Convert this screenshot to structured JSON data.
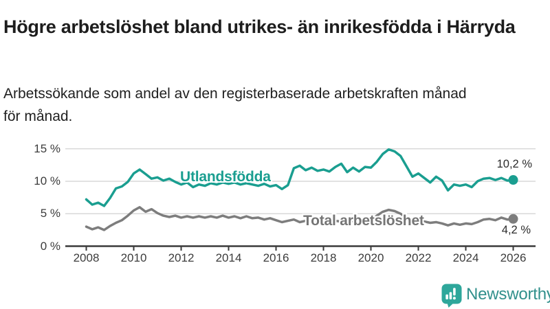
{
  "title": "Högre arbetslöshet bland utrikes- än inrikesfödda i Härryda",
  "subtitle": "Arbetssökande som andel av den registerbaserade arbetskraften månad för månad.",
  "brand": {
    "name": "Newsworthy"
  },
  "colors": {
    "foreign_line": "#1a9e90",
    "total_line": "#7d7d7d",
    "total_label": "#757575",
    "grid": "#d8d8d8",
    "axis": "#3a3a3a",
    "brand_teal": "#31908c",
    "icon_teal": "#2ea79b",
    "title_text": "#1d1d1d"
  },
  "chart_data": {
    "type": "line",
    "title": "Högre arbetslöshet bland utrikes- än inrikesfödda i Härryda",
    "subtitle": "Arbetssökande som andel av den registerbaserade arbetskraften månad för månad.",
    "xlabel": "",
    "ylabel": "%",
    "xlim": [
      2008,
      2026.2
    ],
    "ylim": [
      0,
      15.8
    ],
    "grid": "horizontal",
    "legend_position": "inline-labels",
    "x_ticks": [
      2008,
      2010,
      2012,
      2014,
      2016,
      2018,
      2020,
      2022,
      2024,
      2026
    ],
    "y_ticks": [
      {
        "value": 0,
        "label": "0 %"
      },
      {
        "value": 5,
        "label": "5 %"
      },
      {
        "value": 10,
        "label": "10 %"
      },
      {
        "value": 15,
        "label": "15 %"
      }
    ],
    "x": [
      2008,
      2008.25,
      2008.5,
      2008.75,
      2009,
      2009.25,
      2009.5,
      2009.75,
      2010,
      2010.25,
      2010.5,
      2010.75,
      2011,
      2011.25,
      2011.5,
      2011.75,
      2012,
      2012.25,
      2012.5,
      2012.75,
      2013,
      2013.25,
      2013.5,
      2013.75,
      2014,
      2014.25,
      2014.5,
      2014.75,
      2015,
      2015.25,
      2015.5,
      2015.75,
      2016,
      2016.25,
      2016.5,
      2016.75,
      2017,
      2017.25,
      2017.5,
      2017.75,
      2018,
      2018.25,
      2018.5,
      2018.75,
      2019,
      2019.25,
      2019.5,
      2019.75,
      2020,
      2020.25,
      2020.5,
      2020.75,
      2021,
      2021.25,
      2021.5,
      2021.75,
      2022,
      2022.25,
      2022.5,
      2022.75,
      2023,
      2023.25,
      2023.5,
      2023.75,
      2024,
      2024.25,
      2024.5,
      2024.75,
      2025,
      2025.25,
      2025.5,
      2025.75,
      2026
    ],
    "series": [
      {
        "name": "Utlandsfödda",
        "color": "#1a9e90",
        "end_label": "10,2 %",
        "end_value": 10.2,
        "values": [
          7.2,
          6.4,
          6.7,
          6.2,
          7.4,
          8.9,
          9.2,
          9.9,
          11.2,
          11.8,
          11.1,
          10.4,
          10.6,
          10.1,
          10.4,
          9.9,
          9.5,
          9.8,
          9.1,
          9.5,
          9.3,
          9.7,
          9.5,
          9.8,
          9.6,
          9.8,
          9.5,
          9.7,
          9.5,
          9.3,
          9.6,
          9.2,
          9.4,
          8.8,
          9.4,
          12.0,
          12.4,
          11.7,
          12.1,
          11.6,
          11.8,
          11.5,
          12.2,
          12.7,
          11.4,
          12.1,
          11.5,
          12.2,
          12.1,
          13.0,
          14.2,
          14.9,
          14.6,
          13.9,
          12.3,
          10.7,
          11.2,
          10.5,
          9.8,
          10.7,
          10.1,
          8.6,
          9.5,
          9.3,
          9.5,
          9.1,
          10.0,
          10.4,
          10.5,
          10.2,
          10.5,
          10.1,
          10.2
        ]
      },
      {
        "name": "Total arbetslöshet",
        "color": "#7d7d7d",
        "end_label": "4,2 %",
        "end_value": 4.2,
        "values": [
          3.0,
          2.6,
          2.9,
          2.5,
          3.1,
          3.6,
          4.0,
          4.7,
          5.5,
          6.0,
          5.3,
          5.7,
          5.1,
          4.7,
          4.5,
          4.7,
          4.4,
          4.6,
          4.4,
          4.6,
          4.4,
          4.6,
          4.4,
          4.7,
          4.4,
          4.6,
          4.3,
          4.6,
          4.3,
          4.4,
          4.1,
          4.3,
          4.0,
          3.7,
          3.9,
          4.1,
          3.7,
          3.9,
          3.8,
          4.0,
          3.8,
          3.9,
          3.9,
          3.8,
          3.7,
          3.9,
          3.8,
          3.9,
          4.0,
          4.7,
          5.3,
          5.6,
          5.4,
          5.0,
          4.4,
          4.1,
          4.0,
          3.8,
          3.6,
          3.7,
          3.5,
          3.2,
          3.5,
          3.3,
          3.5,
          3.4,
          3.7,
          4.1,
          4.2,
          4.0,
          4.4,
          4.1,
          4.2
        ]
      }
    ]
  }
}
